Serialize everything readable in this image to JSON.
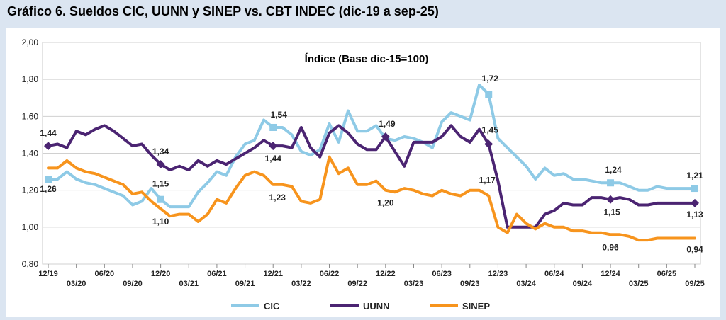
{
  "figure_title": "Gráfico 6. Sueldos CIC, UUNN y SINEP vs. CBT INDEC (dic-19 a sep-25)",
  "chart_data": {
    "type": "line",
    "title": "Índice (Base dic-15=100)",
    "xlabel": "",
    "ylabel": "",
    "ylim": [
      0.8,
      2.0
    ],
    "yticks": [
      "0,80",
      "1,00",
      "1,20",
      "1,40",
      "1,60",
      "1,80",
      "2,00"
    ],
    "xticks_row1": [
      "12/19",
      "06/20",
      "12/20",
      "06/21",
      "12/21",
      "06/22",
      "12/22",
      "06/23",
      "12/23",
      "06/24",
      "12/24",
      "06/25"
    ],
    "xticks_row2": [
      "03/20",
      "09/20",
      "03/21",
      "09/21",
      "03/22",
      "09/22",
      "03/23",
      "09/23",
      "03/24",
      "09/24",
      "03/25",
      "09/25"
    ],
    "grid": true,
    "legend_position": "bottom",
    "x": [
      "12/19",
      "01/20",
      "02/20",
      "03/20",
      "04/20",
      "05/20",
      "06/20",
      "07/20",
      "08/20",
      "09/20",
      "10/20",
      "11/20",
      "12/20",
      "01/21",
      "02/21",
      "03/21",
      "04/21",
      "05/21",
      "06/21",
      "07/21",
      "08/21",
      "09/21",
      "10/21",
      "11/21",
      "12/21",
      "01/22",
      "02/22",
      "03/22",
      "04/22",
      "05/22",
      "06/22",
      "07/22",
      "08/22",
      "09/22",
      "10/22",
      "11/22",
      "12/22",
      "01/23",
      "02/23",
      "03/23",
      "04/23",
      "05/23",
      "06/23",
      "07/23",
      "08/23",
      "09/23",
      "10/23",
      "11/23",
      "12/23",
      "01/24",
      "02/24",
      "03/24",
      "04/24",
      "05/24",
      "06/24",
      "07/24",
      "08/24",
      "09/24",
      "10/24",
      "11/24",
      "12/24",
      "01/25",
      "02/25",
      "03/25",
      "04/25",
      "05/25",
      "06/25",
      "07/25",
      "08/25",
      "09/25"
    ],
    "series": [
      {
        "name": "CIC",
        "color": "#8ecae6",
        "values": [
          1.26,
          1.26,
          1.3,
          1.26,
          1.24,
          1.23,
          1.21,
          1.19,
          1.17,
          1.12,
          1.14,
          1.21,
          1.15,
          1.11,
          1.11,
          1.11,
          1.19,
          1.24,
          1.3,
          1.28,
          1.38,
          1.45,
          1.47,
          1.58,
          1.54,
          1.54,
          1.5,
          1.41,
          1.39,
          1.42,
          1.56,
          1.46,
          1.63,
          1.52,
          1.52,
          1.55,
          1.48,
          1.47,
          1.49,
          1.48,
          1.46,
          1.43,
          1.57,
          1.62,
          1.6,
          1.58,
          1.77,
          1.72,
          1.48,
          1.43,
          1.38,
          1.33,
          1.26,
          1.32,
          1.28,
          1.29,
          1.26,
          1.26,
          1.25,
          1.24,
          1.24,
          1.24,
          1.22,
          1.2,
          1.2,
          1.22,
          1.21,
          1.21,
          1.21,
          1.21
        ],
        "labels": {
          "0": "1,26",
          "12": "1,15",
          "24": "1,54",
          "47": "1,72",
          "60": "1,24",
          "69": "1,21"
        }
      },
      {
        "name": "UUNN",
        "color": "#4b2472",
        "values": [
          1.44,
          1.45,
          1.43,
          1.52,
          1.5,
          1.53,
          1.55,
          1.52,
          1.48,
          1.44,
          1.45,
          1.39,
          1.34,
          1.31,
          1.33,
          1.31,
          1.36,
          1.33,
          1.36,
          1.34,
          1.37,
          1.4,
          1.43,
          1.47,
          1.44,
          1.44,
          1.43,
          1.54,
          1.43,
          1.38,
          1.51,
          1.55,
          1.51,
          1.45,
          1.42,
          1.42,
          1.49,
          1.41,
          1.33,
          1.46,
          1.46,
          1.46,
          1.49,
          1.55,
          1.49,
          1.46,
          1.53,
          1.45,
          1.25,
          1.0,
          1.0,
          1.0,
          1.0,
          1.07,
          1.09,
          1.13,
          1.12,
          1.12,
          1.16,
          1.16,
          1.15,
          1.16,
          1.15,
          1.12,
          1.12,
          1.13,
          1.13,
          1.13,
          1.13,
          1.13
        ],
        "labels": {
          "0": "1,44",
          "12": "1,34",
          "24": "1,44",
          "36": "1,49",
          "47": "1,45",
          "60": "1,15",
          "69": "1,13"
        }
      },
      {
        "name": "SINEP",
        "color": "#f7941d",
        "values": [
          1.32,
          1.32,
          1.36,
          1.32,
          1.3,
          1.29,
          1.27,
          1.25,
          1.23,
          1.18,
          1.19,
          1.14,
          1.1,
          1.06,
          1.07,
          1.07,
          1.03,
          1.07,
          1.15,
          1.13,
          1.21,
          1.28,
          1.3,
          1.28,
          1.23,
          1.23,
          1.22,
          1.14,
          1.13,
          1.15,
          1.38,
          1.29,
          1.32,
          1.23,
          1.23,
          1.25,
          1.2,
          1.19,
          1.21,
          1.2,
          1.18,
          1.17,
          1.2,
          1.18,
          1.17,
          1.2,
          1.2,
          1.17,
          1.0,
          0.97,
          1.07,
          1.02,
          0.99,
          1.02,
          1.0,
          1.0,
          0.98,
          0.98,
          0.97,
          0.97,
          0.96,
          0.96,
          0.95,
          0.93,
          0.93,
          0.94,
          0.94,
          0.94,
          0.94,
          0.94
        ],
        "labels": {
          "12": "1,10",
          "24": "1,23",
          "36": "1,20",
          "47": "1,17",
          "60": "0,96",
          "69": "0,94"
        }
      }
    ]
  }
}
